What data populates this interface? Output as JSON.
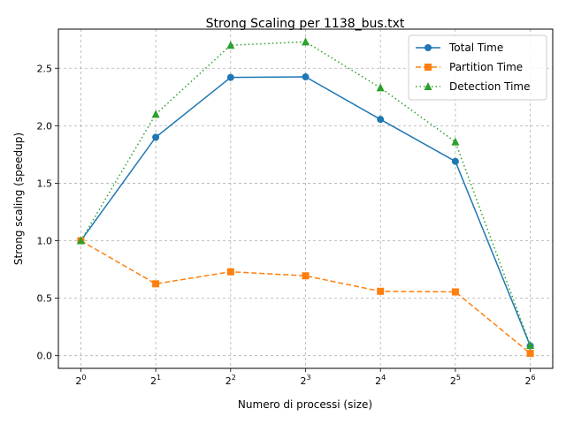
{
  "chart_data": {
    "type": "line",
    "title": "Strong Scaling per 1138_bus.txt",
    "xlabel": "Numero di processi (size)",
    "ylabel": "Strong scaling (speedup)",
    "x_scale": "log2",
    "x": [
      1,
      2,
      4,
      8,
      16,
      32,
      64
    ],
    "x_tick_labels": [
      {
        "base": "2",
        "exp": "0"
      },
      {
        "base": "2",
        "exp": "1"
      },
      {
        "base": "2",
        "exp": "2"
      },
      {
        "base": "2",
        "exp": "3"
      },
      {
        "base": "2",
        "exp": "4"
      },
      {
        "base": "2",
        "exp": "5"
      },
      {
        "base": "2",
        "exp": "6"
      }
    ],
    "ylim": [
      -0.11,
      2.84
    ],
    "y_ticks": [
      "0.0",
      "0.5",
      "1.0",
      "1.5",
      "2.0",
      "2.5"
    ],
    "y_tick_values": [
      0,
      0.5,
      1.0,
      1.5,
      2.0,
      2.5
    ],
    "grid": true,
    "legend_position": "top-right",
    "series": [
      {
        "name": "Total Time",
        "color": "#1f77b4",
        "marker": "circle",
        "linestyle": "solid",
        "values": [
          1.0,
          1.9,
          2.42,
          2.425,
          2.055,
          1.69,
          0.085
        ]
      },
      {
        "name": "Partition Time",
        "color": "#ff7f0e",
        "marker": "square",
        "linestyle": "dashed",
        "values": [
          1.0,
          0.625,
          0.73,
          0.695,
          0.56,
          0.555,
          0.02
        ]
      },
      {
        "name": "Detection Time",
        "color": "#2ca02c",
        "marker": "triangle",
        "linestyle": "dotted",
        "values": [
          1.0,
          2.1,
          2.7,
          2.73,
          2.33,
          1.86,
          0.09
        ]
      }
    ]
  }
}
